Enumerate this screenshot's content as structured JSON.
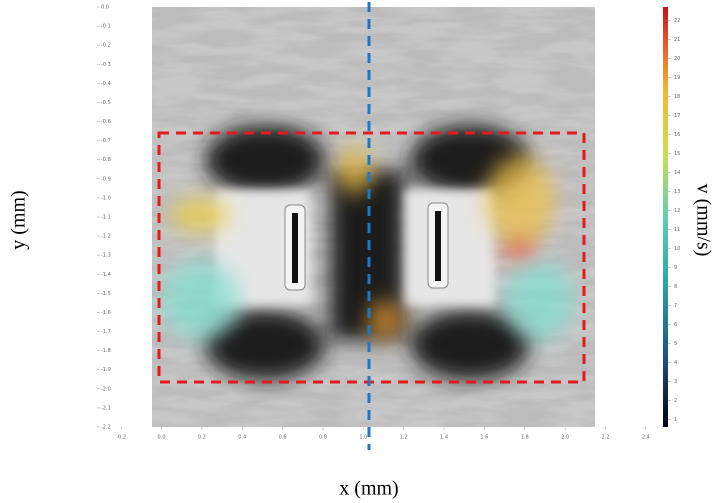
{
  "chart_data": {
    "type": "image",
    "xlabel": "x (mm)",
    "ylabel": "y (mm)",
    "colorbar_label": "v (mm/s)",
    "xlim": [
      -0.3,
      2.5
    ],
    "xticks": [
      -0.2,
      {
        "value": 0,
        "label": "0.0"
      },
      0.2,
      0.4,
      0.6,
      0.8,
      {
        "value": 1,
        "label": "1.0"
      },
      1.2,
      1.4,
      1.6,
      1.8,
      {
        "value": 2,
        "label": "2.0"
      },
      2.2,
      2.4
    ],
    "ylim": [
      -2.2,
      0
    ],
    "yticks": [
      {
        "value": 0,
        "label": "0.0"
      },
      -0.1,
      -0.2,
      -0.3,
      -0.4,
      -0.5,
      -0.6,
      -0.7,
      -0.8,
      -0.9,
      {
        "value": -1,
        "label": "-1.0"
      },
      -1.1,
      -1.2,
      -1.3,
      -1.4,
      -1.5,
      -1.6,
      -1.7,
      -1.8,
      -1.9,
      {
        "value": -2,
        "label": "-2.0"
      },
      -2.1,
      -2.2
    ],
    "clim": [
      0.6,
      22.7
    ],
    "cticks": [
      1,
      2,
      3,
      4,
      5,
      6,
      7,
      8,
      9,
      10,
      11,
      12,
      13,
      14,
      15,
      16,
      17,
      18,
      19,
      20,
      21,
      22
    ]
  }
}
